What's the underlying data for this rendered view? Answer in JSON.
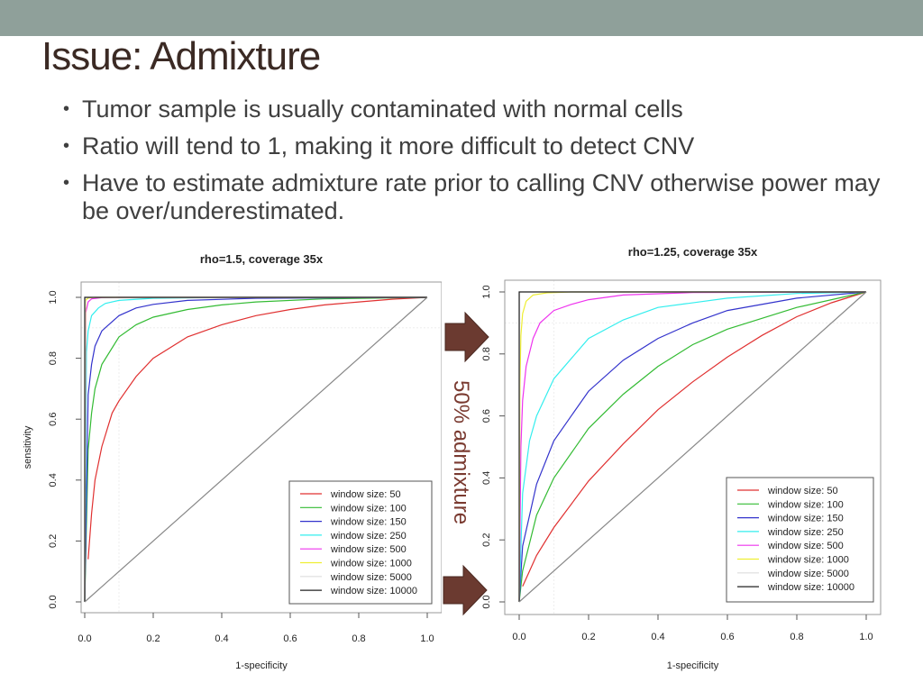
{
  "slide": {
    "title": "Issue: Admixture",
    "bullets": [
      "Tumor sample is usually contaminated with normal cells",
      "Ratio will tend to 1, making it more difficult to detect CNV",
      "Have to estimate admixture rate prior to calling CNV otherwise power may be over/underestimated."
    ],
    "side_label": "50% admixture",
    "colors": {
      "topbar": "#8fa09a",
      "arrow": "#6b3a30",
      "title": "#3b2a24"
    }
  },
  "chart_data": [
    {
      "type": "line",
      "title": "rho=1.5, coverage 35x",
      "xlabel": "1-specificity",
      "ylabel": "sensitivity",
      "xlim": [
        0,
        1
      ],
      "ylim": [
        0,
        1
      ],
      "xticks": [
        "0.0",
        "0.2",
        "0.4",
        "0.6",
        "0.8",
        "1.0"
      ],
      "yticks": [
        "0.0",
        "0.2",
        "0.4",
        "0.6",
        "0.8",
        "1.0"
      ],
      "legend_position": "bottom-right",
      "series": [
        {
          "name": "window size: 50",
          "color": "#e03030",
          "x": [
            0.01,
            0.02,
            0.03,
            0.05,
            0.08,
            0.1,
            0.15,
            0.2,
            0.3,
            0.4,
            0.5,
            0.6,
            0.7,
            0.8,
            0.9,
            1.0
          ],
          "y": [
            0.14,
            0.29,
            0.4,
            0.51,
            0.62,
            0.66,
            0.74,
            0.8,
            0.87,
            0.91,
            0.94,
            0.96,
            0.975,
            0.985,
            0.994,
            1.0
          ]
        },
        {
          "name": "window size: 100",
          "color": "#33bb33",
          "x": [
            0.0,
            0.01,
            0.02,
            0.03,
            0.05,
            0.1,
            0.15,
            0.2,
            0.3,
            0.4,
            0.5,
            0.7,
            1.0
          ],
          "y": [
            0.0,
            0.5,
            0.62,
            0.7,
            0.78,
            0.87,
            0.91,
            0.935,
            0.96,
            0.975,
            0.985,
            0.995,
            1.0
          ]
        },
        {
          "name": "window size: 150",
          "color": "#3333cc",
          "x": [
            0.0,
            0.01,
            0.02,
            0.03,
            0.05,
            0.1,
            0.15,
            0.2,
            0.3,
            0.5,
            1.0
          ],
          "y": [
            0.0,
            0.68,
            0.78,
            0.84,
            0.89,
            0.94,
            0.965,
            0.977,
            0.99,
            0.997,
            1.0
          ]
        },
        {
          "name": "window size: 250",
          "color": "#33eeee",
          "x": [
            0.0,
            0.005,
            0.01,
            0.02,
            0.04,
            0.06,
            0.1,
            0.2,
            0.4,
            1.0
          ],
          "y": [
            0.0,
            0.82,
            0.89,
            0.94,
            0.965,
            0.98,
            0.99,
            0.997,
            1.0,
            1.0
          ]
        },
        {
          "name": "window size: 500",
          "color": "#ee33ee",
          "x": [
            0.0,
            0.003,
            0.01,
            0.02,
            0.05,
            0.1,
            1.0
          ],
          "y": [
            0.0,
            0.95,
            0.985,
            0.995,
            0.999,
            1.0,
            1.0
          ]
        },
        {
          "name": "window size: 1000",
          "color": "#eeee33",
          "x": [
            0.0,
            0.002,
            0.01,
            0.03,
            1.0
          ],
          "y": [
            0.0,
            0.99,
            0.998,
            1.0,
            1.0
          ]
        },
        {
          "name": "window size: 5000",
          "color": "#dddddd",
          "x": [
            0.0,
            0.001,
            1.0
          ],
          "y": [
            0.0,
            1.0,
            1.0
          ]
        },
        {
          "name": "window size: 10000",
          "color": "#222222",
          "x": [
            0.0,
            0.0,
            1.0
          ],
          "y": [
            0.0,
            1.0,
            1.0
          ]
        },
        {
          "name": "",
          "color": "#888888",
          "x": [
            0.0,
            1.0
          ],
          "y": [
            0.0,
            1.0
          ]
        }
      ]
    },
    {
      "type": "line",
      "title": "rho=1.25, coverage 35x",
      "xlabel": "1-specificity",
      "ylabel": "",
      "xlim": [
        0,
        1
      ],
      "ylim": [
        0,
        1
      ],
      "xticks": [
        "0.0",
        "0.2",
        "0.4",
        "0.6",
        "0.8",
        "1.0"
      ],
      "yticks": [
        "0.0",
        "0.2",
        "0.4",
        "0.6",
        "0.8",
        "1.0"
      ],
      "legend_position": "bottom-right",
      "series": [
        {
          "name": "window size: 50",
          "color": "#e03030",
          "x": [
            0.01,
            0.05,
            0.1,
            0.2,
            0.3,
            0.4,
            0.5,
            0.6,
            0.7,
            0.8,
            0.9,
            1.0
          ],
          "y": [
            0.05,
            0.15,
            0.24,
            0.39,
            0.51,
            0.62,
            0.71,
            0.79,
            0.86,
            0.92,
            0.965,
            1.0
          ]
        },
        {
          "name": "window size: 100",
          "color": "#33bb33",
          "x": [
            0.0,
            0.01,
            0.05,
            0.1,
            0.2,
            0.3,
            0.4,
            0.5,
            0.6,
            0.8,
            1.0
          ],
          "y": [
            0.0,
            0.1,
            0.28,
            0.4,
            0.56,
            0.67,
            0.76,
            0.83,
            0.88,
            0.95,
            1.0
          ]
        },
        {
          "name": "window size: 150",
          "color": "#3333cc",
          "x": [
            0.0,
            0.01,
            0.05,
            0.1,
            0.2,
            0.3,
            0.4,
            0.5,
            0.6,
            0.8,
            1.0
          ],
          "y": [
            0.0,
            0.18,
            0.38,
            0.52,
            0.68,
            0.78,
            0.85,
            0.9,
            0.94,
            0.98,
            1.0
          ]
        },
        {
          "name": "window size: 250",
          "color": "#33eeee",
          "x": [
            0.0,
            0.01,
            0.03,
            0.05,
            0.1,
            0.2,
            0.3,
            0.4,
            0.6,
            0.8,
            1.0
          ],
          "y": [
            0.0,
            0.35,
            0.52,
            0.6,
            0.72,
            0.85,
            0.91,
            0.95,
            0.98,
            0.995,
            1.0
          ]
        },
        {
          "name": "window size: 500",
          "color": "#ee33ee",
          "x": [
            0.0,
            0.005,
            0.01,
            0.02,
            0.04,
            0.06,
            0.1,
            0.15,
            0.2,
            0.3,
            0.5,
            1.0
          ],
          "y": [
            0.0,
            0.5,
            0.65,
            0.76,
            0.85,
            0.9,
            0.94,
            0.96,
            0.975,
            0.99,
            0.998,
            1.0
          ]
        },
        {
          "name": "window size: 1000",
          "color": "#eeee33",
          "x": [
            0.0,
            0.002,
            0.005,
            0.01,
            0.02,
            0.04,
            0.08,
            0.15,
            1.0
          ],
          "y": [
            0.0,
            0.7,
            0.86,
            0.93,
            0.97,
            0.99,
            0.997,
            1.0,
            1.0
          ]
        },
        {
          "name": "window size: 5000",
          "color": "#dddddd",
          "x": [
            0.0,
            0.001,
            1.0
          ],
          "y": [
            0.0,
            1.0,
            1.0
          ]
        },
        {
          "name": "window size: 10000",
          "color": "#222222",
          "x": [
            0.0,
            0.0,
            1.0
          ],
          "y": [
            0.0,
            1.0,
            1.0
          ]
        },
        {
          "name": "",
          "color": "#888888",
          "x": [
            0.0,
            1.0
          ],
          "y": [
            0.0,
            1.0
          ]
        }
      ]
    }
  ]
}
